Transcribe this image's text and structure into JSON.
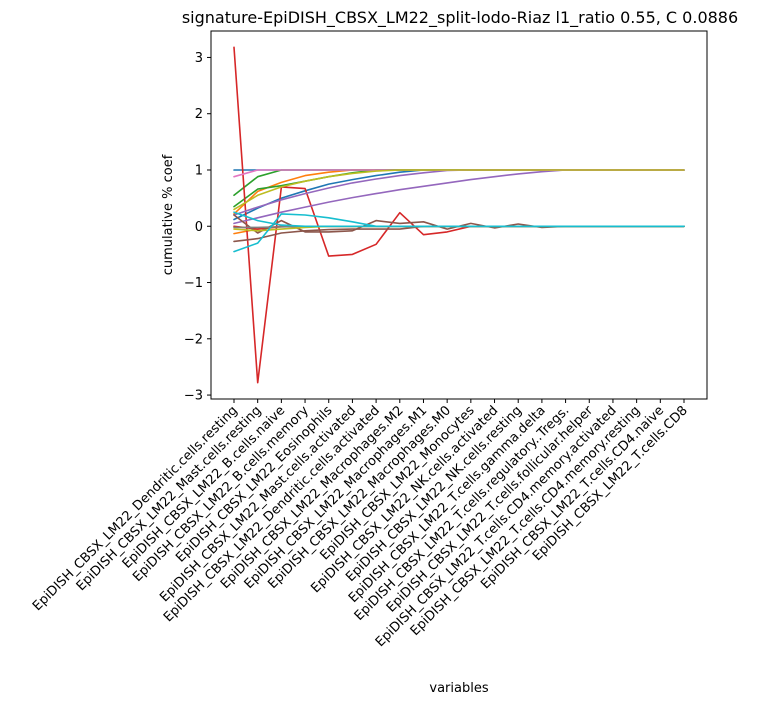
{
  "chart_data": {
    "type": "line",
    "title": "signature-EpiDISH_CBSX_LM22_split-lodo-Riaz l1_ratio 0.55, C 0.0886",
    "xlabel": "variables",
    "ylabel": "cumulative % coef",
    "ylim": [
      -3.07,
      3.47
    ],
    "yticks": [
      -3,
      -2,
      -1,
      0,
      1,
      2,
      3
    ],
    "ytick_labels": [
      "−3",
      "−2",
      "−1",
      "0",
      "1",
      "2",
      "3"
    ],
    "grid": false,
    "categories": [
      "EpiDISH_CBSX_LM22_Dendritic.cells.resting",
      "EpiDISH_CBSX_LM22_Mast.cells.resting",
      "EpiDISH_CBSX_LM22_B.cells.naive",
      "EpiDISH_CBSX_LM22_B.cells.memory",
      "EpiDISH_CBSX_LM22_Eosinophils",
      "EpiDISH_CBSX_LM22_Mast.cells.activated",
      "EpiDISH_CBSX_LM22_Dendritic.cells.activated",
      "EpiDISH_CBSX_LM22_Macrophages.M2",
      "EpiDISH_CBSX_LM22_Macrophages.M1",
      "EpiDISH_CBSX_LM22_Macrophages.M0",
      "EpiDISH_CBSX_LM22_Monocytes",
      "EpiDISH_CBSX_LM22_NK.cells.activated",
      "EpiDISH_CBSX_LM22_NK.cells.resting",
      "EpiDISH_CBSX_LM22_T.cells.gamma.delta",
      "EpiDISH_CBSX_LM22_T.cells.regulatory..Tregs.",
      "EpiDISH_CBSX_LM22_T.cells.follicular.helper",
      "EpiDISH_CBSX_LM22_T.cells.CD4.memory.activated",
      "EpiDISH_CBSX_LM22_T.cells.CD4.memory.resting",
      "EpiDISH_CBSX_LM22_T.cells.CD4.naive",
      "EpiDISH_CBSX_LM22_T.cells.CD8"
    ],
    "series": [
      {
        "color": "#1f77b4",
        "values": [
          1.0,
          1.0,
          1.0,
          1.0,
          1.0,
          1.0,
          1.0,
          1.0,
          1.0,
          1.0,
          1.0,
          1.0,
          1.0,
          1.0,
          1.0,
          1.0,
          1.0,
          1.0,
          1.0,
          1.0
        ]
      },
      {
        "color": "#1f77b4",
        "values": [
          0.12,
          0.32,
          0.5,
          0.63,
          0.75,
          0.83,
          0.9,
          0.96,
          1.0,
          1.0,
          1.0,
          1.0,
          1.0,
          1.0,
          1.0,
          1.0,
          1.0,
          1.0,
          1.0,
          1.0
        ]
      },
      {
        "color": "#ff7f0e",
        "values": [
          -0.13,
          -0.05,
          -0.01,
          0.0,
          0.0,
          0.0,
          0.0,
          0.0,
          0.0,
          0.0,
          0.0,
          0.0,
          0.0,
          0.0,
          0.0,
          0.0,
          0.0,
          0.0,
          0.0,
          0.0
        ]
      },
      {
        "color": "#ff7f0e",
        "values": [
          0.22,
          0.62,
          0.78,
          0.9,
          0.96,
          1.0,
          1.0,
          1.0,
          1.0,
          1.0,
          1.0,
          1.0,
          1.0,
          1.0,
          1.0,
          1.0,
          1.0,
          1.0,
          1.0,
          1.0
        ]
      },
      {
        "color": "#2ca02c",
        "values": [
          0.55,
          0.88,
          1.0,
          1.0,
          1.0,
          1.0,
          1.0,
          1.0,
          1.0,
          1.0,
          1.0,
          1.0,
          1.0,
          1.0,
          1.0,
          1.0,
          1.0,
          1.0,
          1.0,
          1.0
        ]
      },
      {
        "color": "#2ca02c",
        "values": [
          0.35,
          0.66,
          0.72,
          0.8,
          0.88,
          0.95,
          1.0,
          1.0,
          1.0,
          1.0,
          1.0,
          1.0,
          1.0,
          1.0,
          1.0,
          1.0,
          1.0,
          1.0,
          1.0,
          1.0
        ]
      },
      {
        "color": "#d62728",
        "values": [
          3.18,
          -2.78,
          0.7,
          0.67,
          -0.53,
          -0.5,
          -0.32,
          0.24,
          -0.15,
          -0.1,
          0.0,
          0.0,
          0.0,
          0.0,
          0.0,
          0.0,
          0.0,
          0.0,
          0.0,
          0.0
        ]
      },
      {
        "color": "#d62728",
        "values": [
          0.0,
          -0.05,
          0.0,
          0.0,
          0.0,
          0.0,
          0.0,
          0.0,
          0.0,
          0.0,
          0.0,
          0.0,
          0.0,
          0.0,
          0.0,
          0.0,
          0.0,
          0.0,
          0.0,
          0.0
        ]
      },
      {
        "color": "#9467bd",
        "values": [
          0.05,
          0.15,
          0.25,
          0.34,
          0.43,
          0.51,
          0.58,
          0.65,
          0.71,
          0.77,
          0.83,
          0.88,
          0.93,
          0.97,
          1.0,
          1.0,
          1.0,
          1.0,
          1.0,
          1.0
        ]
      },
      {
        "color": "#9467bd",
        "values": [
          0.2,
          0.34,
          0.47,
          0.58,
          0.68,
          0.77,
          0.84,
          0.9,
          0.95,
          0.99,
          1.0,
          1.0,
          1.0,
          1.0,
          1.0,
          1.0,
          1.0,
          1.0,
          1.0,
          1.0
        ]
      },
      {
        "color": "#8c564b",
        "values": [
          0.2,
          -0.12,
          0.1,
          -0.1,
          -0.1,
          -0.08,
          0.1,
          0.05,
          0.08,
          -0.05,
          0.05,
          -0.03,
          0.04,
          -0.02,
          0.0,
          0.0,
          0.0,
          0.0,
          0.0,
          0.0
        ]
      },
      {
        "color": "#8c564b",
        "values": [
          -0.27,
          -0.22,
          -0.12,
          -0.08,
          -0.06,
          -0.05,
          -0.05,
          -0.05,
          0.0,
          0.0,
          0.0,
          0.0,
          0.0,
          0.0,
          0.0,
          0.0,
          0.0,
          0.0,
          0.0,
          0.0
        ]
      },
      {
        "color": "#e377c2",
        "values": [
          0.88,
          1.0,
          1.0,
          1.0,
          1.0,
          1.0,
          1.0,
          1.0,
          1.0,
          1.0,
          1.0,
          1.0,
          1.0,
          1.0,
          1.0,
          1.0,
          1.0,
          1.0,
          1.0,
          1.0
        ]
      },
      {
        "color": "#7f7f7f",
        "values": [
          -0.02,
          -0.02,
          -0.01,
          0.0,
          0.0,
          0.0,
          0.0,
          0.0,
          0.0,
          0.0,
          0.0,
          0.0,
          0.0,
          0.0,
          0.0,
          0.0,
          0.0,
          0.0,
          0.0,
          0.0
        ]
      },
      {
        "color": "#bcbd22",
        "values": [
          0.3,
          0.55,
          0.7,
          0.8,
          0.88,
          0.94,
          0.98,
          1.0,
          1.0,
          1.0,
          1.0,
          1.0,
          1.0,
          1.0,
          1.0,
          1.0,
          1.0,
          1.0,
          1.0,
          1.0
        ]
      },
      {
        "color": "#bcbd22",
        "values": [
          -0.05,
          -0.08,
          -0.05,
          -0.02,
          0.0,
          0.0,
          0.0,
          0.0,
          0.0,
          0.0,
          0.0,
          0.0,
          0.0,
          0.0,
          0.0,
          0.0,
          0.0,
          0.0,
          0.0,
          0.0
        ]
      },
      {
        "color": "#17becf",
        "values": [
          -0.45,
          -0.3,
          0.22,
          0.2,
          0.15,
          0.08,
          0.0,
          0.0,
          0.0,
          0.0,
          0.0,
          0.0,
          0.0,
          0.0,
          0.0,
          0.0,
          0.0,
          0.0,
          0.0,
          0.0
        ]
      },
      {
        "color": "#17becf",
        "values": [
          0.25,
          0.1,
          0.02,
          0.0,
          0.0,
          0.0,
          0.0,
          0.0,
          0.0,
          0.0,
          0.0,
          0.0,
          0.0,
          0.0,
          0.0,
          0.0,
          0.0,
          0.0,
          0.0,
          0.0
        ]
      }
    ]
  }
}
